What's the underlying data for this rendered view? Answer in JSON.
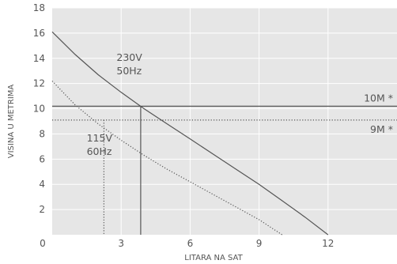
{
  "chart_data": {
    "type": "line",
    "title": "",
    "xlabel": "LITARA NA SAT",
    "ylabel": "VISINA U METRIMA",
    "xlim": [
      0,
      15
    ],
    "ylim": [
      0,
      18
    ],
    "x_ticks": [
      0,
      3,
      6,
      9,
      12
    ],
    "y_ticks": [
      2,
      4,
      6,
      8,
      10,
      12,
      14,
      16,
      18
    ],
    "grid": true,
    "legend": "none",
    "colors": {
      "background": "#e6e6e6",
      "grid": "#ffffff",
      "line": "#555555",
      "text": "#555555"
    },
    "series": [
      {
        "name": "230V 50Hz",
        "style": "solid",
        "points": [
          [
            0,
            16.1
          ],
          [
            1,
            14.3
          ],
          [
            2,
            12.7
          ],
          [
            3,
            11.3
          ],
          [
            4,
            10.0
          ],
          [
            5,
            8.8
          ],
          [
            6,
            7.6
          ],
          [
            7,
            6.4
          ],
          [
            8,
            5.2
          ],
          [
            9,
            4.0
          ],
          [
            10,
            2.7
          ],
          [
            11,
            1.4
          ],
          [
            12,
            0
          ]
        ]
      },
      {
        "name": "115V 60Hz",
        "style": "dotted",
        "points": [
          [
            0,
            12.2
          ],
          [
            1,
            10.3
          ],
          [
            2,
            8.8
          ],
          [
            3,
            7.5
          ],
          [
            4,
            6.3
          ],
          [
            5,
            5.2
          ],
          [
            6,
            4.2
          ],
          [
            7,
            3.2
          ],
          [
            8,
            2.2
          ],
          [
            9,
            1.2
          ],
          [
            10,
            0
          ]
        ]
      }
    ],
    "reference_lines": [
      {
        "axis": "y",
        "value": 10.2,
        "style": "solid",
        "label": "10M *"
      },
      {
        "axis": "y",
        "value": 9.1,
        "style": "dotted",
        "label": "9M *"
      },
      {
        "axis": "x",
        "value": 3.85,
        "to_y": 10.2,
        "style": "solid"
      },
      {
        "axis": "x",
        "value": 2.25,
        "to_y": 9.1,
        "style": "dotted"
      }
    ],
    "annotations": [
      {
        "lines": [
          "230V",
          "50Hz"
        ],
        "x": 2.8,
        "y": 13.8
      },
      {
        "lines": [
          "115V",
          "60Hz"
        ],
        "x": 1.5,
        "y": 7.4
      }
    ]
  }
}
